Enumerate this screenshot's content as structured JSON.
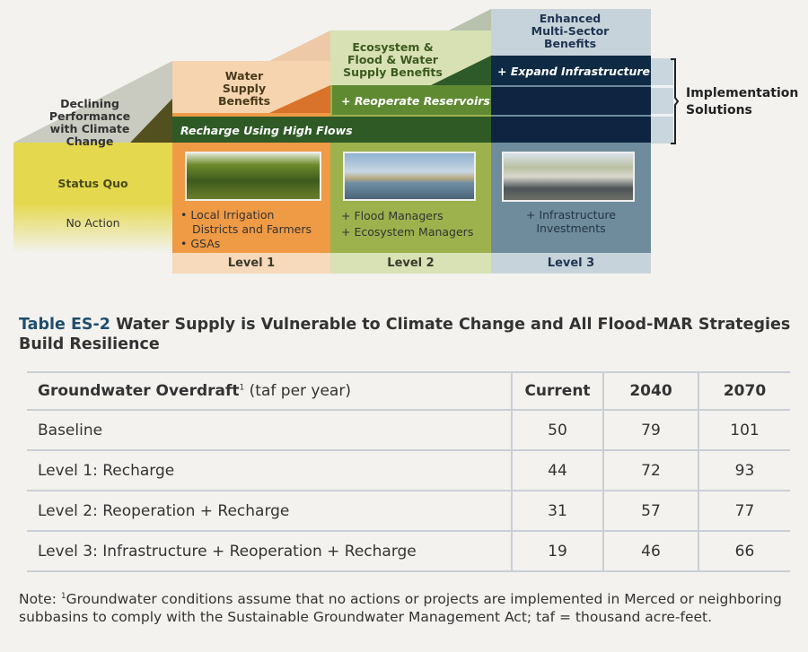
{
  "diagram": {
    "declining": "Declining Performance with Climate Change",
    "status_quo": "Status Quo",
    "no_action": "No Action",
    "col1_benefit": "Water Supply Benefits",
    "col2_benefit": "Ecosystem & Flood & Water Supply Benefits",
    "col3_benefit": "Enhanced Multi-Sector Benefits",
    "band_recharge": "Recharge Using High Flows",
    "band_reoperate": "+ Reoperate Reservoirs",
    "band_expand": "+ Expand Infrastructure",
    "implementation": "Implementation Solutions",
    "col1_items": [
      "• Local Irrigation",
      "Districts and Farmers",
      "• GSAs"
    ],
    "col2_items": [
      "+ Flood Managers",
      "+ Ecosystem Managers"
    ],
    "col3_items": [
      "+ Infrastructure",
      "Investments"
    ],
    "levels": [
      "Level 1",
      "Level 2",
      "Level 3"
    ]
  },
  "table": {
    "label": "Table ES-2",
    "title": "Water Supply is Vulnerable to Climate Change and All Flood-MAR Strategies Build Resilience",
    "header": {
      "col0": "Groundwater Overdraft",
      "sup": "1",
      "unit": " (taf per year)",
      "cols": [
        "Current",
        "2040",
        "2070"
      ]
    },
    "rows": [
      {
        "name": "Baseline",
        "values": [
          "50",
          "79",
          "101"
        ]
      },
      {
        "name": "Level 1: Recharge",
        "values": [
          "44",
          "72",
          "93"
        ]
      },
      {
        "name": "Level 2: Reoperation + Recharge",
        "values": [
          "31",
          "57",
          "77"
        ]
      },
      {
        "name": "Level 3: Infrastructure + Reoperation + Recharge",
        "values": [
          "19",
          "46",
          "66"
        ]
      }
    ]
  },
  "note": {
    "prefix": "Note: ",
    "sup": "1",
    "text": "Groundwater conditions assume that no actions or projects are implemented in Merced or neighboring subbasins to comply with the Sustainable Groundwater Management Act; taf = thousand acre-feet."
  }
}
